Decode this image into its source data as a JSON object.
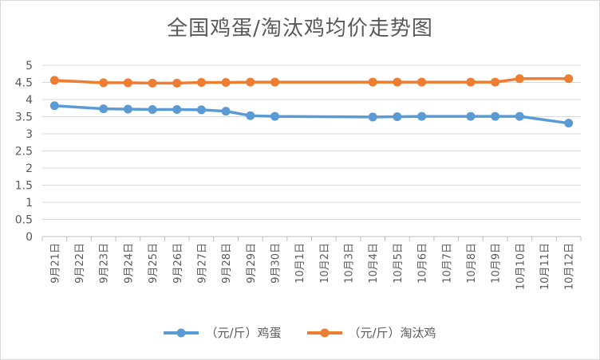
{
  "chart_data": {
    "type": "line",
    "title": "全国鸡蛋/淘汰鸡均价走势图",
    "categories": [
      "9月21日",
      "9月22日",
      "9月23日",
      "9月24日",
      "9月25日",
      "9月26日",
      "9月27日",
      "9月28日",
      "9月29日",
      "9月30日",
      "10月1日",
      "10月2日",
      "10月3日",
      "10月4日",
      "10月5日",
      "10月6日",
      "10月7日",
      "10月8日",
      "10月9日",
      "10月10日",
      "10月11日",
      "10月12日"
    ],
    "ylim": [
      0,
      5
    ],
    "yticks": [
      "0",
      "0.5",
      "1",
      "1.5",
      "2",
      "2.5",
      "3",
      "3.5",
      "4",
      "4.5",
      "5"
    ],
    "grid": true,
    "legend_position": "bottom",
    "series": [
      {
        "name": "（元/斤）鸡蛋",
        "color": "#5b9bd5",
        "values": [
          3.82,
          null,
          3.73,
          3.72,
          3.71,
          3.71,
          3.7,
          3.66,
          3.53,
          3.51,
          null,
          null,
          null,
          3.49,
          3.5,
          3.51,
          null,
          3.51,
          3.51,
          3.51,
          null,
          3.31
        ]
      },
      {
        "name": "（元/斤）淘汰鸡",
        "color": "#ed7d31",
        "values": [
          4.56,
          null,
          4.49,
          4.49,
          4.48,
          4.48,
          4.5,
          4.5,
          4.51,
          4.51,
          null,
          null,
          null,
          4.51,
          4.51,
          4.51,
          null,
          4.51,
          4.51,
          4.61,
          null,
          4.61
        ]
      }
    ]
  }
}
